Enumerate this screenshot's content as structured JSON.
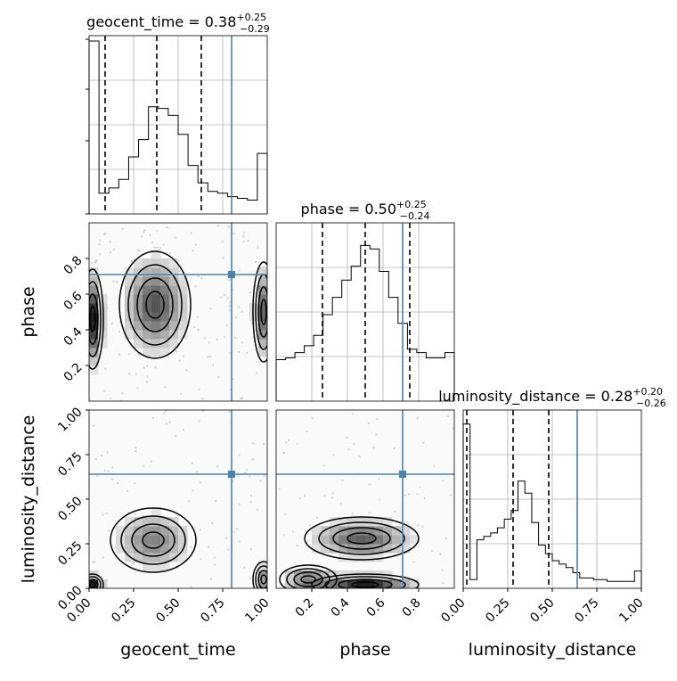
{
  "colors": {
    "truth": "#4682b4",
    "hist": "#000000",
    "quantile": "#000000",
    "grid": "#b0b0b0",
    "scatter": "#9a9a9a"
  },
  "chart_data": {
    "type": "corner",
    "parameters": [
      "geocent_time",
      "phase",
      "luminosity_distance"
    ],
    "titles": [
      {
        "param": "geocent_time",
        "text": "geocent_time = 0.38",
        "sup": "+0.25",
        "sub": "−0.29"
      },
      {
        "param": "phase",
        "text": "phase = 0.50",
        "sup": "+0.25",
        "sub": "−0.24"
      },
      {
        "param": "luminosity_distance",
        "text": "luminosity_distance = 0.28",
        "sup": "+0.20",
        "sub": "−0.26"
      }
    ],
    "ranges": {
      "geocent_time": [
        0.0,
        1.0
      ],
      "phase": [
        0.0,
        1.0
      ],
      "luminosity_distance": [
        0.0,
        1.0
      ]
    },
    "x_ticks": {
      "geocent_time": [
        "0.00",
        "0.25",
        "0.50",
        "0.75",
        "1.00"
      ],
      "phase": [
        "0.2",
        "0.4",
        "0.6",
        "0.8"
      ],
      "luminosity_distance": [
        "0.00",
        "0.25",
        "0.50",
        "0.75",
        "1.00"
      ]
    },
    "y_ticks": {
      "phase": [
        "0.2",
        "0.4",
        "0.6",
        "0.8"
      ],
      "luminosity_distance": [
        "0.00",
        "0.25",
        "0.50",
        "0.75",
        "1.00"
      ]
    },
    "truths": {
      "geocent_time": 0.8,
      "phase": 0.71,
      "luminosity_distance": 0.64
    },
    "quantiles": {
      "geocent_time": [
        0.09,
        0.38,
        0.63
      ],
      "phase": [
        0.26,
        0.5,
        0.75
      ],
      "luminosity_distance": [
        0.02,
        0.28,
        0.48
      ]
    },
    "histograms": {
      "geocent_time": [
        1.0,
        0.12,
        0.15,
        0.2,
        0.33,
        0.43,
        0.62,
        0.61,
        0.57,
        0.46,
        0.28,
        0.18,
        0.13,
        0.12,
        0.1,
        0.09,
        0.08,
        0.35
      ],
      "phase": [
        0.24,
        0.25,
        0.28,
        0.32,
        0.38,
        0.5,
        0.6,
        0.7,
        0.78,
        0.9,
        0.88,
        0.75,
        0.6,
        0.45,
        0.3,
        0.28,
        0.25,
        0.25,
        0.28
      ],
      "luminosity_distance": [
        0.95,
        0.05,
        0.28,
        0.3,
        0.32,
        0.35,
        0.4,
        0.45,
        0.62,
        0.55,
        0.38,
        0.25,
        0.2,
        0.16,
        0.14,
        0.12,
        0.09,
        0.06,
        0.06,
        0.05,
        0.05,
        0.04,
        0.04,
        0.04,
        0.04,
        0.1
      ]
    },
    "densities": {
      "geocent_time_phase": {
        "modes": [
          [
            0.02,
            0.46,
            0.03,
            0.14,
            1.0
          ],
          [
            0.98,
            0.5,
            0.03,
            0.14,
            0.7
          ],
          [
            0.37,
            0.54,
            0.1,
            0.15,
            0.75
          ]
        ],
        "floor": 0.12
      },
      "geocent_time_luminosity_distance": {
        "modes": [
          [
            0.02,
            0.02,
            0.03,
            0.03,
            1.0
          ],
          [
            0.36,
            0.27,
            0.12,
            0.09,
            0.55
          ],
          [
            0.98,
            0.05,
            0.03,
            0.05,
            0.5
          ]
        ],
        "floor": 0.08
      },
      "phase_luminosity_distance": {
        "modes": [
          [
            0.48,
            0.28,
            0.16,
            0.06,
            0.7
          ],
          [
            0.5,
            0.02,
            0.15,
            0.03,
            1.0
          ],
          [
            0.18,
            0.05,
            0.08,
            0.04,
            0.6
          ]
        ],
        "floor": 0.08
      }
    },
    "grid": true
  }
}
